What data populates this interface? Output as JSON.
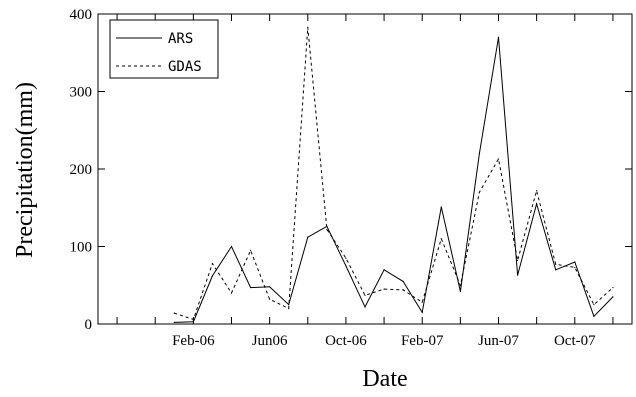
{
  "chart_data": {
    "type": "line",
    "xlabel": "Date",
    "ylabel": "Precipitation(mm)",
    "ylim": [
      0,
      400
    ],
    "yticks": [
      "0",
      "100",
      "200",
      "300",
      "400"
    ],
    "x_tick_labels": [
      "Feb-06",
      "Jun06",
      "Oct-06",
      "Feb-07",
      "Jun-07",
      "Oct-07"
    ],
    "x_tick_months": [
      "2006-02",
      "2006-06",
      "2006-10",
      "2007-02",
      "2007-06",
      "2007-10"
    ],
    "x_range": [
      "2005-09",
      "2008-01"
    ],
    "grid": false,
    "legend_position": "top-left",
    "x": [
      "2006-01",
      "2006-02",
      "2006-03",
      "2006-04",
      "2006-05",
      "2006-06",
      "2006-07",
      "2006-08",
      "2006-09",
      "2006-10",
      "2006-11",
      "2006-12",
      "2007-01",
      "2007-02",
      "2007-03",
      "2007-04",
      "2007-05",
      "2007-06",
      "2007-07",
      "2007-08",
      "2007-09",
      "2007-10",
      "2007-11",
      "2007-12"
    ],
    "series": [
      {
        "name": "ARS",
        "style": "solid",
        "color": "#000000",
        "values": [
          2,
          3,
          62,
          100,
          47,
          48,
          25,
          112,
          126,
          75,
          22,
          70,
          55,
          15,
          151,
          42,
          220,
          370,
          63,
          155,
          70,
          80,
          10,
          35
        ]
      },
      {
        "name": "GDAS",
        "style": "dashed",
        "color": "#000000",
        "values": [
          14,
          6,
          78,
          40,
          95,
          32,
          20,
          383,
          122,
          85,
          37,
          45,
          44,
          28,
          110,
          50,
          170,
          213,
          82,
          172,
          77,
          73,
          25,
          47
        ]
      }
    ]
  }
}
